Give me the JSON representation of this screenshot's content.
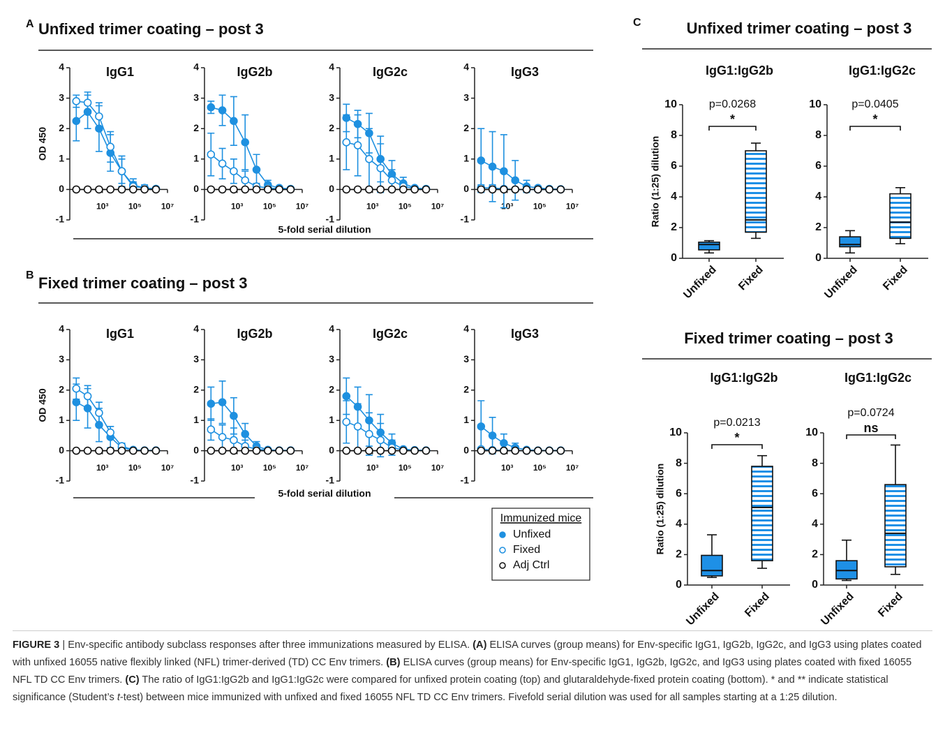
{
  "panels": [
    {
      "letter": "A",
      "title": "Unfixed trimer coating – post 3",
      "xlabel": "5-fold serial dilution"
    },
    {
      "letter": "B",
      "title": "Fixed trimer coating – post 3",
      "xlabel": "5-fold serial dilution"
    },
    {
      "letter": "C",
      "title": "Unfixed trimer coating – post 3"
    },
    {
      "title": "Fixed trimer coating – post 3"
    }
  ],
  "chart_data": [
    {
      "type": "line",
      "title": "IgG1",
      "ylabel": "OD 450",
      "xscale": "log",
      "xlim": [
        10,
        10000000
      ],
      "xticks": [
        {
          "value": 1000,
          "label": "10³"
        },
        {
          "value": 100000,
          "label": "10⁵"
        },
        {
          "value": 10000000,
          "label": "10⁷"
        }
      ],
      "ylim": [
        -1,
        4
      ],
      "yticks": [
        -1,
        0,
        1,
        2,
        3,
        4
      ],
      "x": [
        25,
        125,
        625,
        3125,
        15625,
        78125,
        390625,
        1953125
      ],
      "series": [
        {
          "name": "Unfixed",
          "color": "#1e90e0",
          "marker": "filled",
          "values": [
            2.25,
            2.55,
            2.0,
            1.2,
            0.6,
            0.15,
            0.05,
            0.02
          ],
          "errors": [
            0.65,
            0.55,
            0.75,
            0.6,
            0.5,
            0.2,
            0.1,
            0.05
          ]
        },
        {
          "name": "Fixed",
          "color": "#1e90e0",
          "marker": "open",
          "values": [
            2.9,
            2.85,
            2.4,
            1.4,
            0.6,
            0.1,
            0.05,
            0.02
          ],
          "errors": [
            0.2,
            0.35,
            0.45,
            0.5,
            0.4,
            0.15,
            0.05,
            0.02
          ]
        },
        {
          "name": "Adj Ctrl",
          "color": "#111111",
          "marker": "open",
          "values": [
            0,
            0,
            0,
            0,
            0,
            0,
            0,
            0
          ]
        }
      ]
    },
    {
      "type": "line",
      "title": "IgG2b",
      "xscale": "log",
      "xlim": [
        10,
        10000000
      ],
      "xticks": [
        {
          "value": 1000,
          "label": "10³"
        },
        {
          "value": 100000,
          "label": "10⁵"
        },
        {
          "value": 10000000,
          "label": "10⁷"
        }
      ],
      "ylim": [
        -1,
        4
      ],
      "yticks": [
        -1,
        0,
        1,
        2,
        3,
        4
      ],
      "x": [
        25,
        125,
        625,
        3125,
        15625,
        78125,
        390625,
        1953125
      ],
      "series": [
        {
          "name": "Unfixed",
          "color": "#1e90e0",
          "marker": "filled",
          "values": [
            2.7,
            2.6,
            2.25,
            1.55,
            0.65,
            0.15,
            0.05,
            0.02
          ],
          "errors": [
            0.2,
            0.5,
            0.8,
            0.9,
            0.5,
            0.15,
            0.05,
            0.02
          ]
        },
        {
          "name": "Fixed",
          "color": "#1e90e0",
          "marker": "open",
          "values": [
            1.15,
            0.85,
            0.6,
            0.3,
            0.1,
            0.05,
            0.02,
            0.01
          ],
          "errors": [
            0.7,
            0.5,
            0.4,
            0.3,
            0.1,
            0.05,
            0.02,
            0.01
          ]
        },
        {
          "name": "Adj Ctrl",
          "color": "#111111",
          "marker": "open",
          "values": [
            0,
            0,
            0,
            0,
            0,
            0,
            0,
            0
          ]
        }
      ]
    },
    {
      "type": "line",
      "title": "IgG2c",
      "xscale": "log",
      "xlim": [
        10,
        10000000
      ],
      "xticks": [
        {
          "value": 1000,
          "label": "10³"
        },
        {
          "value": 100000,
          "label": "10⁵"
        },
        {
          "value": 10000000,
          "label": "10⁷"
        }
      ],
      "ylim": [
        -1,
        4
      ],
      "yticks": [
        -1,
        0,
        1,
        2,
        3,
        4
      ],
      "x": [
        25,
        125,
        625,
        3125,
        15625,
        78125,
        390625,
        1953125
      ],
      "series": [
        {
          "name": "Unfixed",
          "color": "#1e90e0",
          "marker": "filled",
          "values": [
            2.35,
            2.15,
            1.85,
            1.0,
            0.5,
            0.2,
            0.05,
            0.02
          ],
          "errors": [
            0.45,
            0.45,
            0.65,
            0.75,
            0.45,
            0.2,
            0.05,
            0.02
          ]
        },
        {
          "name": "Fixed",
          "color": "#1e90e0",
          "marker": "open",
          "values": [
            1.55,
            1.45,
            1.0,
            0.7,
            0.3,
            0.1,
            0.03,
            0.01
          ],
          "errors": [
            0.9,
            1.0,
            1.0,
            0.8,
            0.35,
            0.1,
            0.03,
            0.01
          ]
        },
        {
          "name": "Adj Ctrl",
          "color": "#111111",
          "marker": "open",
          "values": [
            0,
            0,
            0,
            0,
            0,
            0,
            0,
            0
          ]
        }
      ]
    },
    {
      "type": "line",
      "title": "IgG3",
      "xscale": "log",
      "xlim": [
        10,
        10000000
      ],
      "xticks": [
        {
          "value": 1000,
          "label": "10³"
        },
        {
          "value": 100000,
          "label": "10⁵"
        },
        {
          "value": 10000000,
          "label": "10⁷"
        }
      ],
      "ylim": [
        -1,
        4
      ],
      "yticks": [
        -1,
        0,
        1,
        2,
        3,
        4
      ],
      "x": [
        25,
        125,
        625,
        3125,
        15625,
        78125,
        390625,
        1953125
      ],
      "series": [
        {
          "name": "Unfixed",
          "color": "#1e90e0",
          "marker": "filled",
          "values": [
            0.95,
            0.75,
            0.6,
            0.3,
            0.1,
            0.05,
            0.02,
            0.01
          ],
          "errors": [
            1.05,
            1.15,
            1.2,
            0.65,
            0.2,
            0.05,
            0.02,
            0.01
          ]
        },
        {
          "name": "Fixed",
          "color": "#1e90e0",
          "marker": "open",
          "values": [
            0.05,
            0.05,
            0.02,
            0,
            0,
            0,
            0,
            0
          ],
          "errors": [
            0.1,
            0.1,
            0.05,
            0.02,
            0.01,
            0.01,
            0.01,
            0.01
          ]
        },
        {
          "name": "Adj Ctrl",
          "color": "#111111",
          "marker": "open",
          "values": [
            0,
            0,
            0,
            0,
            0,
            0,
            0,
            0
          ]
        }
      ]
    },
    {
      "type": "line",
      "title": "IgG1",
      "ylabel": "OD 450",
      "xscale": "log",
      "xlim": [
        10,
        10000000
      ],
      "xticks": [
        {
          "value": 1000,
          "label": "10³"
        },
        {
          "value": 100000,
          "label": "10⁵"
        },
        {
          "value": 10000000,
          "label": "10⁷"
        }
      ],
      "ylim": [
        -1,
        4
      ],
      "yticks": [
        -1,
        0,
        1,
        2,
        3,
        4
      ],
      "x": [
        25,
        125,
        625,
        3125,
        15625,
        78125,
        390625,
        1953125
      ],
      "series": [
        {
          "name": "Unfixed",
          "color": "#1e90e0",
          "marker": "filled",
          "values": [
            1.6,
            1.4,
            0.85,
            0.45,
            0.1,
            0.02,
            0.01,
            0.01
          ],
          "errors": [
            0.6,
            0.65,
            0.55,
            0.35,
            0.1,
            0.02,
            0.01,
            0.01
          ]
        },
        {
          "name": "Fixed",
          "color": "#1e90e0",
          "marker": "open",
          "values": [
            2.05,
            1.8,
            1.25,
            0.6,
            0.15,
            0.03,
            0.01,
            0.01
          ],
          "errors": [
            0.35,
            0.35,
            0.35,
            0.2,
            0.1,
            0.03,
            0.01,
            0.01
          ]
        },
        {
          "name": "Adj Ctrl",
          "color": "#111111",
          "marker": "open",
          "values": [
            0,
            0,
            0,
            0,
            0,
            0,
            0,
            0
          ]
        }
      ]
    },
    {
      "type": "line",
      "title": "IgG2b",
      "xscale": "log",
      "xlim": [
        10,
        10000000
      ],
      "xticks": [
        {
          "value": 1000,
          "label": "10³"
        },
        {
          "value": 100000,
          "label": "10⁵"
        },
        {
          "value": 10000000,
          "label": "10⁷"
        }
      ],
      "ylim": [
        -1,
        4
      ],
      "yticks": [
        -1,
        0,
        1,
        2,
        3,
        4
      ],
      "x": [
        25,
        125,
        625,
        3125,
        15625,
        78125,
        390625,
        1953125
      ],
      "series": [
        {
          "name": "Unfixed",
          "color": "#1e90e0",
          "marker": "filled",
          "values": [
            1.55,
            1.6,
            1.15,
            0.55,
            0.15,
            0.03,
            0.01,
            0.01
          ],
          "errors": [
            0.55,
            0.7,
            0.6,
            0.35,
            0.15,
            0.03,
            0.01,
            0.01
          ]
        },
        {
          "name": "Fixed",
          "color": "#1e90e0",
          "marker": "open",
          "values": [
            0.7,
            0.45,
            0.35,
            0.15,
            0.05,
            0.02,
            0.01,
            0.01
          ],
          "errors": [
            0.35,
            0.4,
            0.4,
            0.2,
            0.05,
            0.02,
            0.01,
            0.01
          ]
        },
        {
          "name": "Adj Ctrl",
          "color": "#111111",
          "marker": "open",
          "values": [
            0,
            0,
            0,
            0,
            0,
            0,
            0,
            0
          ]
        }
      ]
    },
    {
      "type": "line",
      "title": "IgG2c",
      "xscale": "log",
      "xlim": [
        10,
        10000000
      ],
      "xticks": [
        {
          "value": 1000,
          "label": "10³"
        },
        {
          "value": 100000,
          "label": "10⁵"
        },
        {
          "value": 10000000,
          "label": "10⁷"
        }
      ],
      "ylim": [
        -1,
        4
      ],
      "yticks": [
        -1,
        0,
        1,
        2,
        3,
        4
      ],
      "x": [
        25,
        125,
        625,
        3125,
        15625,
        78125,
        390625,
        1953125
      ],
      "series": [
        {
          "name": "Unfixed",
          "color": "#1e90e0",
          "marker": "filled",
          "values": [
            1.8,
            1.45,
            1.0,
            0.6,
            0.25,
            0.05,
            0.02,
            0.01
          ],
          "errors": [
            0.6,
            0.65,
            0.85,
            0.6,
            0.3,
            0.05,
            0.02,
            0.01
          ]
        },
        {
          "name": "Fixed",
          "color": "#1e90e0",
          "marker": "open",
          "values": [
            0.95,
            0.8,
            0.55,
            0.35,
            0.1,
            0.03,
            0.01,
            0.01
          ],
          "errors": [
            0.7,
            0.75,
            0.7,
            0.55,
            0.25,
            0.03,
            0.01,
            0.01
          ]
        },
        {
          "name": "Adj Ctrl",
          "color": "#111111",
          "marker": "open",
          "values": [
            0,
            0,
            0,
            0,
            0,
            0,
            0,
            0
          ]
        }
      ]
    },
    {
      "type": "line",
      "title": "IgG3",
      "xscale": "log",
      "xlim": [
        10,
        10000000
      ],
      "xticks": [
        {
          "value": 1000,
          "label": "10³"
        },
        {
          "value": 100000,
          "label": "10⁵"
        },
        {
          "value": 10000000,
          "label": "10⁷"
        }
      ],
      "ylim": [
        -1,
        4
      ],
      "yticks": [
        -1,
        0,
        1,
        2,
        3,
        4
      ],
      "x": [
        25,
        125,
        625,
        3125,
        15625,
        78125,
        390625,
        1953125
      ],
      "series": [
        {
          "name": "Unfixed",
          "color": "#1e90e0",
          "marker": "filled",
          "values": [
            0.8,
            0.5,
            0.25,
            0.1,
            0.03,
            0.01,
            0.01,
            0.01
          ],
          "errors": [
            0.85,
            0.6,
            0.3,
            0.15,
            0.05,
            0.01,
            0.01,
            0.01
          ]
        },
        {
          "name": "Fixed",
          "color": "#1e90e0",
          "marker": "open",
          "values": [
            0.05,
            0.02,
            0.01,
            0.01,
            0,
            0,
            0,
            0
          ],
          "errors": [
            0.05,
            0.03,
            0.02,
            0.01,
            0.01,
            0.01,
            0.01,
            0.01
          ]
        },
        {
          "name": "Adj Ctrl",
          "color": "#111111",
          "marker": "open",
          "values": [
            0,
            0,
            0,
            0,
            0,
            0,
            0,
            0
          ]
        }
      ]
    },
    {
      "type": "box",
      "title": "IgG1:IgG2b",
      "ylabel": "Ratio (1:25) dilution",
      "p_value": "p=0.0268",
      "significance": "*",
      "ylim": [
        0,
        10
      ],
      "yticks": [
        0,
        2,
        4,
        6,
        8,
        10
      ],
      "categories": [
        "Unfixed",
        "Fixed"
      ],
      "colors": [
        "#1e90e6",
        "#1e90e6"
      ],
      "styles": [
        "solid",
        "striped"
      ],
      "boxes": [
        {
          "min": 0.35,
          "q1": 0.55,
          "median": 0.9,
          "q3": 1.05,
          "max": 1.15
        },
        {
          "min": 1.3,
          "q1": 1.7,
          "median": 2.5,
          "q3": 7.0,
          "max": 7.5
        }
      ]
    },
    {
      "type": "box",
      "title": "IgG1:IgG2c",
      "p_value": "p=0.0405",
      "significance": "*",
      "ylim": [
        0,
        10
      ],
      "yticks": [
        0,
        2,
        4,
        6,
        8,
        10
      ],
      "categories": [
        "Unfixed",
        "Fixed"
      ],
      "colors": [
        "#1e90e6",
        "#1e90e6"
      ],
      "styles": [
        "solid",
        "striped"
      ],
      "boxes": [
        {
          "min": 0.35,
          "q1": 0.75,
          "median": 0.9,
          "q3": 1.4,
          "max": 1.8
        },
        {
          "min": 0.95,
          "q1": 1.3,
          "median": 2.35,
          "q3": 4.2,
          "max": 4.6
        }
      ]
    },
    {
      "type": "box",
      "title": "IgG1:IgG2b",
      "ylabel": "Ratio (1:25) dilution",
      "p_value": "p=0.0213",
      "significance": "*",
      "ylim": [
        0,
        10
      ],
      "yticks": [
        0,
        2,
        4,
        6,
        8,
        10
      ],
      "categories": [
        "Unfixed",
        "Fixed"
      ],
      "colors": [
        "#1e90e6",
        "#1e90e6"
      ],
      "styles": [
        "solid",
        "striped"
      ],
      "boxes": [
        {
          "min": 0.5,
          "q1": 0.6,
          "median": 0.95,
          "q3": 1.95,
          "max": 3.3
        },
        {
          "min": 1.1,
          "q1": 1.6,
          "median": 5.1,
          "q3": 7.8,
          "max": 8.5
        }
      ]
    },
    {
      "type": "box",
      "title": "IgG1:IgG2c",
      "p_value": "p=0.0724",
      "significance": "ns",
      "ylim": [
        0,
        10
      ],
      "yticks": [
        0,
        2,
        4,
        6,
        8,
        10
      ],
      "categories": [
        "Unfixed",
        "Fixed"
      ],
      "colors": [
        "#1e90e6",
        "#1e90e6"
      ],
      "styles": [
        "solid",
        "striped"
      ],
      "boxes": [
        {
          "min": 0.3,
          "q1": 0.4,
          "median": 0.95,
          "q3": 1.6,
          "max": 2.95
        },
        {
          "min": 0.7,
          "q1": 1.2,
          "median": 3.4,
          "q3": 6.6,
          "max": 9.2
        }
      ]
    }
  ],
  "legend": {
    "title": "Immunized mice"
  },
  "caption": [
    {
      "text": "FIGURE 3",
      "bold": true
    },
    {
      "text": " | Env-specific antibody subclass responses after three immunizations measured by ELISA. "
    },
    {
      "text": "(A)",
      "bold": true
    },
    {
      "text": " ELISA curves (group means) for Env-specific IgG1, IgG2b, IgG2c, and IgG3 using plates coated with unfixed 16055 native flexibly linked (NFL) trimer-derived (TD) CC Env trimers. "
    },
    {
      "text": "(B)",
      "bold": true
    },
    {
      "text": " ELISA curves (group means) for Env-specific IgG1, IgG2b, IgG2c, and IgG3 using plates coated with fixed 16055 NFL TD CC Env trimers. "
    },
    {
      "text": "(C)",
      "bold": true
    },
    {
      "text": " The ratio of IgG1:IgG2b and IgG1:IgG2c were compared for unfixed protein coating (top) and glutaraldehyde-fixed protein coating (bottom). * and ** indicate statistical significance (Student’s "
    },
    {
      "text": "t",
      "italic": true
    },
    {
      "text": "-test) between mice immunized with unfixed and fixed 16055 NFL TD CC Env trimers. Fivefold serial dilution was used for all samples starting at a 1:25 dilution."
    }
  ]
}
